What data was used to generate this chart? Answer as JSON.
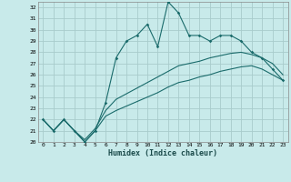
{
  "title": "",
  "xlabel": "Humidex (Indice chaleur)",
  "bg_color": "#c8eaea",
  "grid_color": "#a8cccc",
  "line_color": "#1a6b6b",
  "xlim": [
    -0.5,
    23.5
  ],
  "ylim": [
    20,
    32.5
  ],
  "xticks": [
    0,
    1,
    2,
    3,
    4,
    5,
    6,
    7,
    8,
    9,
    10,
    11,
    12,
    13,
    14,
    15,
    16,
    17,
    18,
    19,
    20,
    21,
    22,
    23
  ],
  "yticks": [
    20,
    21,
    22,
    23,
    24,
    25,
    26,
    27,
    28,
    29,
    30,
    31,
    32
  ],
  "series1_x": [
    0,
    1,
    2,
    3,
    4,
    5,
    6,
    7,
    8,
    9,
    10,
    11,
    12,
    13,
    14,
    15,
    16,
    17,
    18,
    19,
    20,
    21,
    22,
    23
  ],
  "series1_y": [
    22.0,
    21.0,
    22.0,
    21.0,
    20.0,
    21.0,
    23.5,
    27.5,
    29.0,
    29.5,
    30.5,
    28.5,
    32.5,
    31.5,
    29.5,
    29.5,
    29.0,
    29.5,
    29.5,
    29.0,
    28.0,
    27.5,
    26.5,
    25.5
  ],
  "series2_x": [
    0,
    1,
    2,
    3,
    4,
    5,
    6,
    7,
    8,
    9,
    10,
    11,
    12,
    13,
    14,
    15,
    16,
    17,
    18,
    19,
    20,
    21,
    22,
    23
  ],
  "series2_y": [
    22.0,
    21.0,
    22.0,
    21.0,
    20.2,
    21.2,
    22.8,
    23.8,
    24.3,
    24.8,
    25.3,
    25.8,
    26.3,
    26.8,
    27.0,
    27.2,
    27.5,
    27.7,
    27.9,
    28.0,
    27.8,
    27.5,
    27.0,
    26.0
  ],
  "series3_x": [
    0,
    1,
    2,
    3,
    4,
    5,
    6,
    7,
    8,
    9,
    10,
    11,
    12,
    13,
    14,
    15,
    16,
    17,
    18,
    19,
    20,
    21,
    22,
    23
  ],
  "series3_y": [
    22.0,
    21.0,
    22.0,
    21.0,
    20.0,
    21.0,
    22.3,
    22.8,
    23.2,
    23.6,
    24.0,
    24.4,
    24.9,
    25.3,
    25.5,
    25.8,
    26.0,
    26.3,
    26.5,
    26.7,
    26.8,
    26.5,
    26.0,
    25.5
  ]
}
